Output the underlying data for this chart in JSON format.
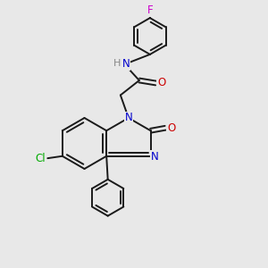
{
  "bg_color": "#e8e8e8",
  "bond_color": "#1a1a1a",
  "bond_width": 1.4,
  "atom_colors": {
    "N": "#0000cc",
    "O": "#cc0000",
    "Cl": "#00aa00",
    "F": "#cc00cc",
    "H": "#888888"
  },
  "font_size": 8.5,
  "xlim": [
    0,
    10
  ],
  "ylim": [
    0,
    10
  ]
}
